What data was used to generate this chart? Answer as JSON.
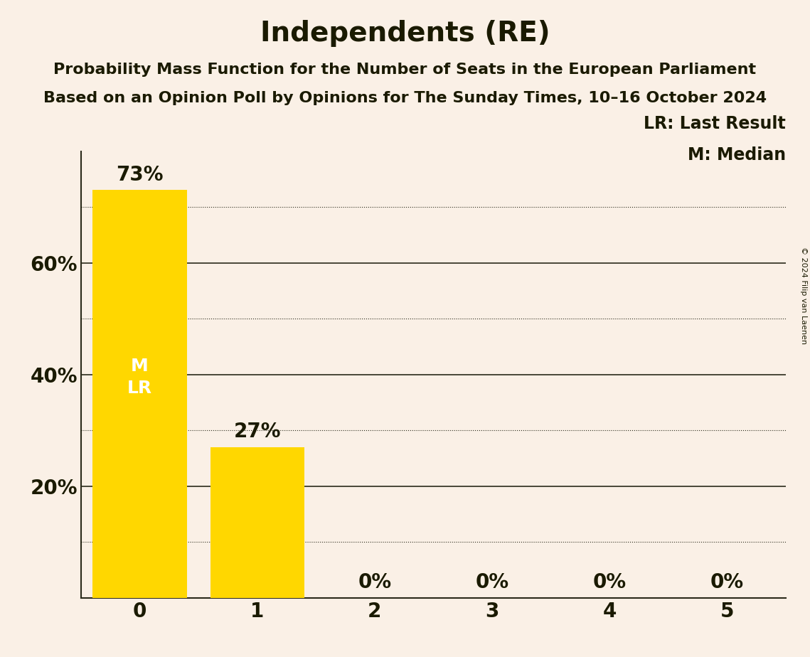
{
  "title": "Independents (RE)",
  "subtitle1": "Probability Mass Function for the Number of Seats in the European Parliament",
  "subtitle2": "Based on an Opinion Poll by Opinions for The Sunday Times, 10–16 October 2024",
  "categories": [
    0,
    1,
    2,
    3,
    4,
    5
  ],
  "values": [
    0.73,
    0.27,
    0.0,
    0.0,
    0.0,
    0.0
  ],
  "bar_color": "#FFD700",
  "background_color": "#FAF0E6",
  "text_color": "#1a1a00",
  "white_text": "#FFFFFF",
  "dark_text": "#1a1a00",
  "median_seat": 0,
  "last_result_seat": 0,
  "legend_lr": "LR: Last Result",
  "legend_m": "M: Median",
  "copyright": "© 2024 Filip van Laenen",
  "ylim": [
    0,
    0.8
  ],
  "solid_grid_values": [
    0.2,
    0.4,
    0.6
  ],
  "dotted_grid_values": [
    0.1,
    0.3,
    0.5,
    0.7
  ],
  "title_fontsize": 28,
  "subtitle_fontsize": 16,
  "tick_fontsize": 20,
  "bar_label_fontsize": 20,
  "ml_label_fontsize": 18,
  "legend_fontsize": 17,
  "copyright_fontsize": 8,
  "bar_width": 0.8,
  "xlim": [
    -0.5,
    5.5
  ]
}
